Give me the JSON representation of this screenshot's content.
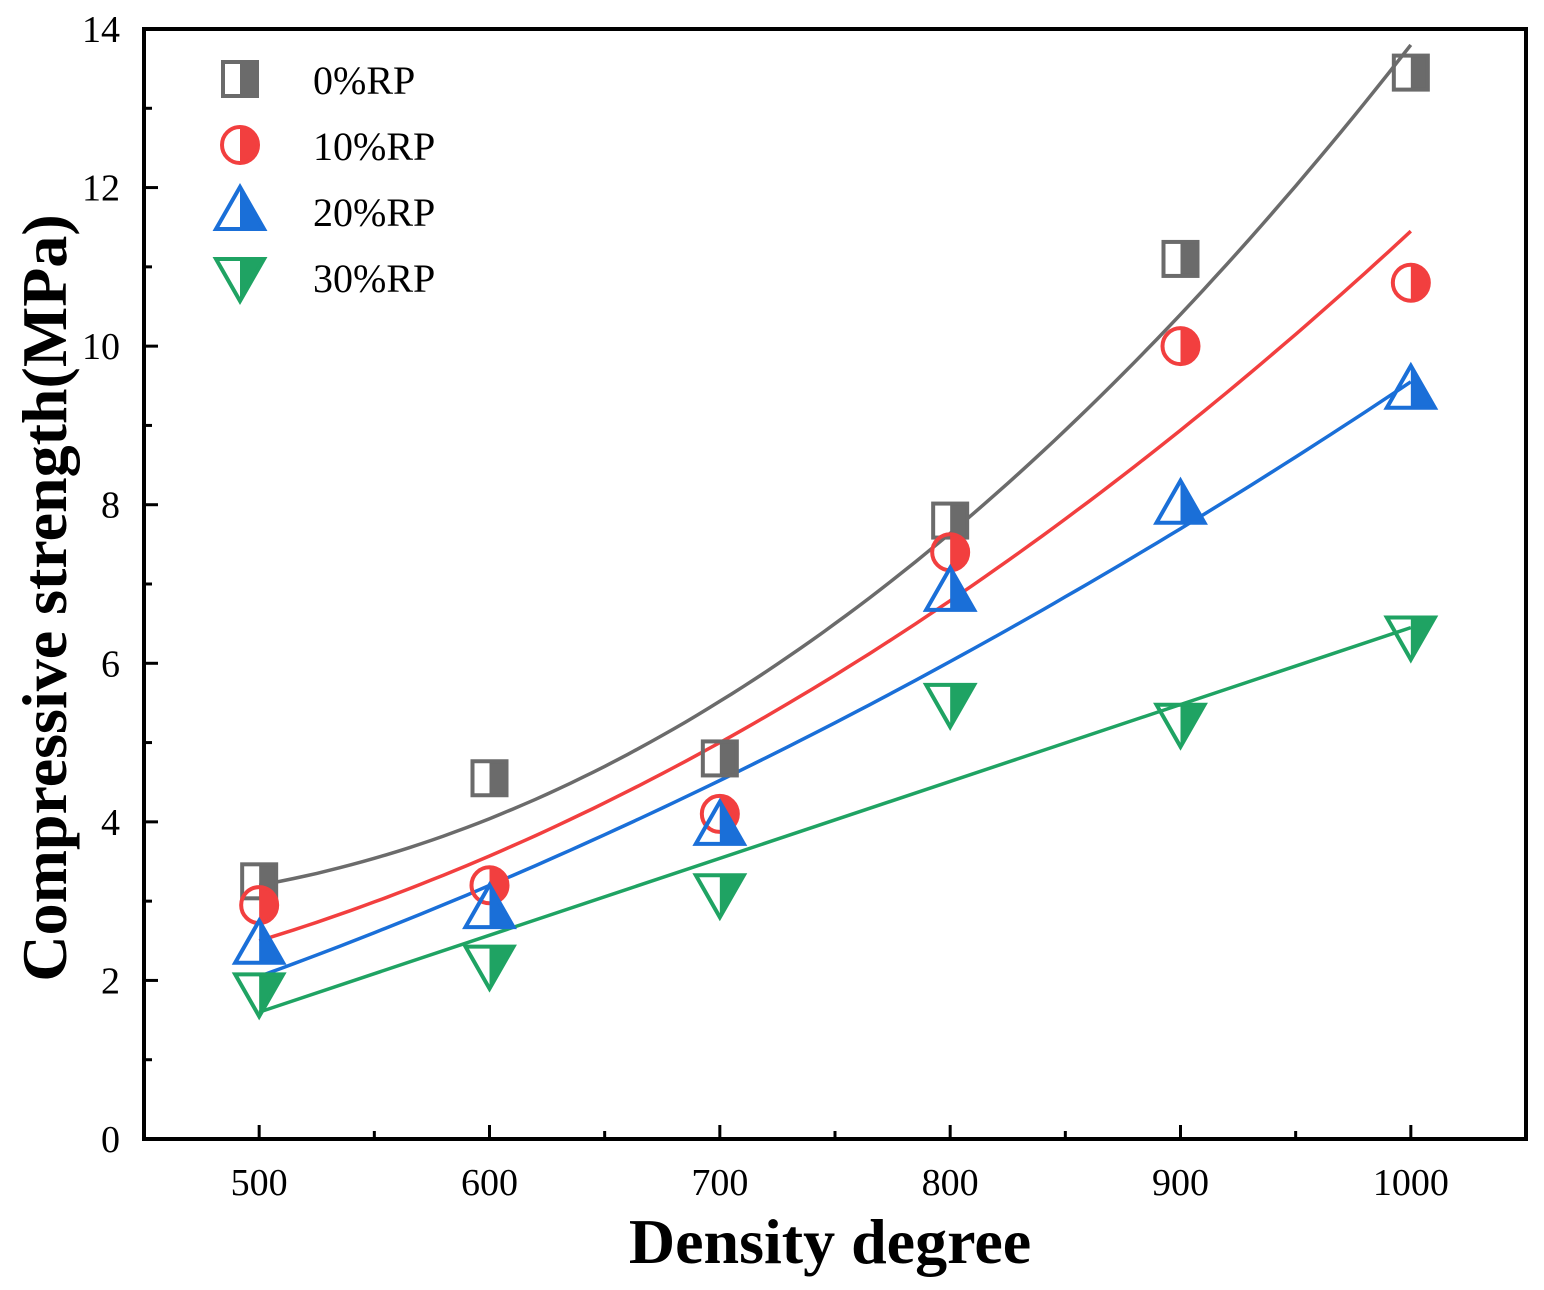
{
  "chart_data": {
    "type": "scatter",
    "title": "",
    "xlabel": "Density degree",
    "ylabel": "Compressive strength(MPa)",
    "xlim": [
      450,
      1050
    ],
    "ylim": [
      0,
      14
    ],
    "x_ticks": [
      500,
      600,
      700,
      800,
      900,
      1000
    ],
    "x_tick_labels": [
      "500",
      "600",
      "700",
      "800",
      "900",
      "1000"
    ],
    "y_ticks": [
      0,
      2,
      4,
      6,
      8,
      10,
      12,
      14
    ],
    "y_tick_labels": [
      "0",
      "2",
      "4",
      "6",
      "8",
      "10",
      "12",
      "14"
    ],
    "x": [
      500,
      600,
      700,
      800,
      900,
      1000
    ],
    "legend_position": "top-left",
    "series": [
      {
        "name": "0%RP",
        "marker": "square",
        "color": "#6b6b6b",
        "values": [
          3.25,
          4.55,
          4.8,
          7.8,
          11.1,
          13.45
        ],
        "fit": "quadratic",
        "fit_points": [
          [
            500,
            3.2
          ],
          [
            750,
            6.5
          ],
          [
            1000,
            13.8
          ]
        ]
      },
      {
        "name": "10%RP",
        "marker": "circle",
        "color": "#f23f3f",
        "values": [
          2.95,
          3.2,
          4.1,
          7.4,
          10.0,
          10.8
        ],
        "fit": "quadratic",
        "fit_points": [
          [
            500,
            2.5
          ],
          [
            750,
            5.85
          ],
          [
            1000,
            11.45
          ]
        ]
      },
      {
        "name": "20%RP",
        "marker": "triangle-up",
        "color": "#1a6fd8",
        "values": [
          2.45,
          2.9,
          3.95,
          6.9,
          8.0,
          9.45
        ],
        "fit": "quadratic",
        "fit_points": [
          [
            500,
            2.05
          ],
          [
            750,
            5.25
          ],
          [
            1000,
            9.55
          ]
        ]
      },
      {
        "name": "30%RP",
        "marker": "triangle-down",
        "color": "#1fa363",
        "values": [
          1.85,
          2.2,
          3.1,
          5.5,
          5.25,
          6.35
        ],
        "fit": "linear",
        "fit_points": [
          [
            500,
            1.6
          ],
          [
            1000,
            6.45
          ]
        ]
      }
    ]
  }
}
